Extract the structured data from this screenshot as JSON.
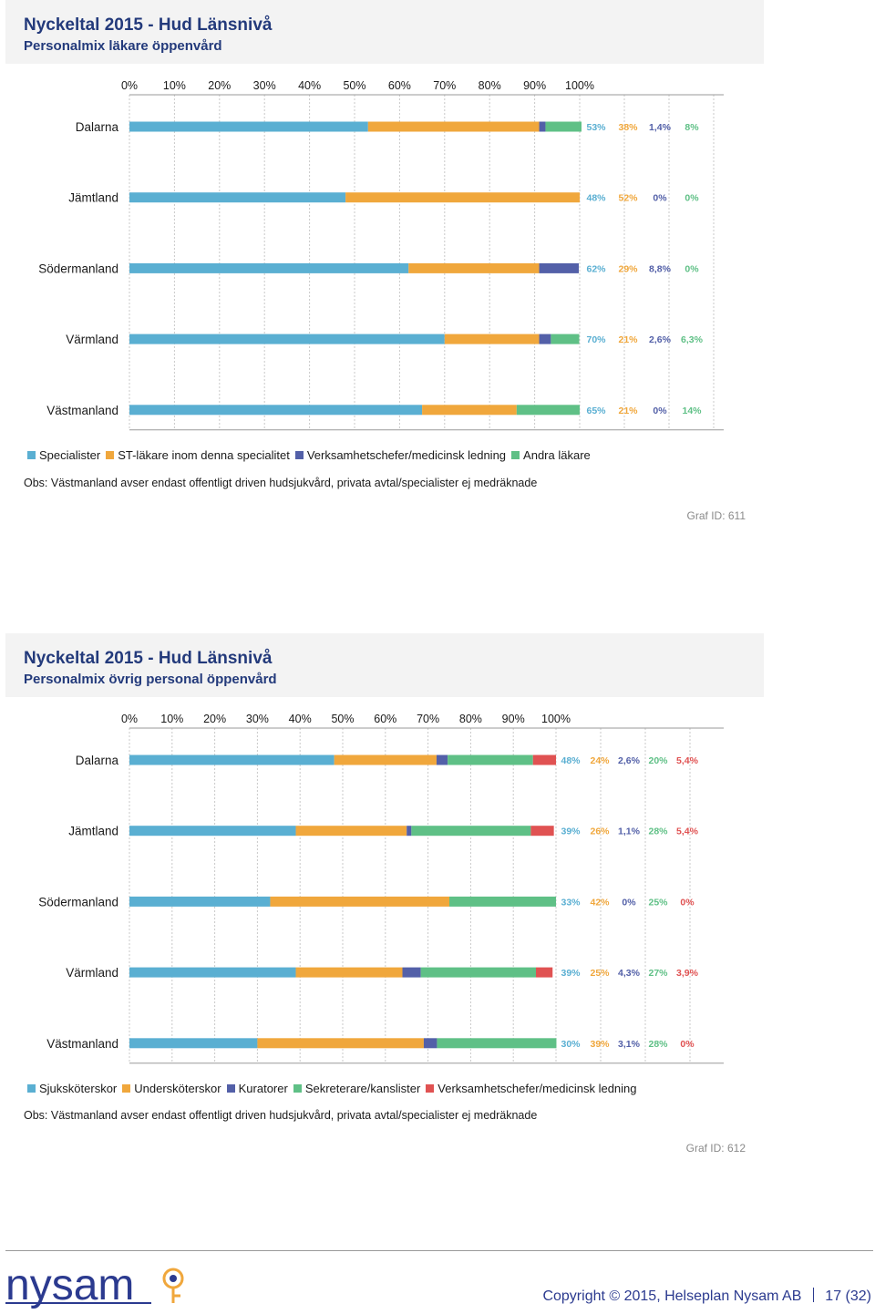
{
  "chart_data": [
    {
      "type": "bar",
      "orientation": "horizontal",
      "stacked": true,
      "title": "Nyckeltal 2015 - Hud Länsnivå",
      "subtitle": "Personalmix läkare öppenvård",
      "xlim": [
        0,
        100
      ],
      "x_ticks": [
        "0%",
        "10%",
        "20%",
        "30%",
        "40%",
        "50%",
        "60%",
        "70%",
        "80%",
        "90%",
        "100%"
      ],
      "grid": "vertical dotted",
      "legend_position": "bottom",
      "categories": [
        "Dalarna",
        "Jämtland",
        "Södermanland",
        "Värmland",
        "Västmanland"
      ],
      "series": [
        {
          "name": "Specialister",
          "color": "#5aafd2",
          "values": [
            53,
            48,
            62,
            70,
            65
          ],
          "labels": [
            "53%",
            "48%",
            "62%",
            "70%",
            "65%"
          ]
        },
        {
          "name": "ST-läkare inom denna specialitet",
          "color": "#f0a73c",
          "values": [
            38,
            52,
            29,
            21,
            21
          ],
          "labels": [
            "38%",
            "52%",
            "29%",
            "21%",
            "21%"
          ]
        },
        {
          "name": "Verksamhetschefer/medicinsk ledning",
          "color": "#5360a8",
          "values": [
            1.4,
            0,
            8.8,
            2.6,
            0
          ],
          "labels": [
            "1,4%",
            "0%",
            "8,8%",
            "2,6%",
            "0%"
          ]
        },
        {
          "name": "Andra läkare",
          "color": "#5fc086",
          "values": [
            8,
            0,
            0,
            6.3,
            14
          ],
          "labels": [
            "8%",
            "0%",
            "0%",
            "6,3%",
            "14%"
          ]
        }
      ],
      "note": "Obs: Västmanland avser endast offentligt driven hudsjukvård, privata avtal/specialister ej medräknade",
      "graf_id": "Graf ID: 611"
    },
    {
      "type": "bar",
      "orientation": "horizontal",
      "stacked": true,
      "title": "Nyckeltal 2015 - Hud Länsnivå",
      "subtitle": "Personalmix övrig personal öppenvård",
      "xlim": [
        0,
        100
      ],
      "x_ticks": [
        "0%",
        "10%",
        "20%",
        "30%",
        "40%",
        "50%",
        "60%",
        "70%",
        "80%",
        "90%",
        "100%"
      ],
      "grid": "vertical dotted",
      "legend_position": "bottom",
      "categories": [
        "Dalarna",
        "Jämtland",
        "Södermanland",
        "Värmland",
        "Västmanland"
      ],
      "series": [
        {
          "name": "Sjuksköterskor",
          "color": "#5aafd2",
          "values": [
            48,
            39,
            33,
            39,
            30
          ],
          "labels": [
            "48%",
            "39%",
            "33%",
            "39%",
            "30%"
          ]
        },
        {
          "name": "Undersköterskor",
          "color": "#f0a73c",
          "values": [
            24,
            26,
            42,
            25,
            39
          ],
          "labels": [
            "24%",
            "26%",
            "42%",
            "25%",
            "39%"
          ]
        },
        {
          "name": "Kuratorer",
          "color": "#5360a8",
          "values": [
            2.6,
            1.1,
            0,
            4.3,
            3.1
          ],
          "labels": [
            "2,6%",
            "1,1%",
            "0%",
            "4,3%",
            "3,1%"
          ]
        },
        {
          "name": "Sekreterare/kanslister",
          "color": "#5fc086",
          "values": [
            20,
            28,
            25,
            27,
            28
          ],
          "labels": [
            "20%",
            "28%",
            "25%",
            "27%",
            "28%"
          ]
        },
        {
          "name": "Verksamhetschefer/medicinsk ledning",
          "color": "#e05252",
          "values": [
            5.4,
            5.4,
            0,
            3.9,
            0
          ],
          "labels": [
            "5,4%",
            "5,4%",
            "0%",
            "3,9%",
            "0%"
          ]
        }
      ],
      "note": "Obs: Västmanland avser endast offentligt driven hudsjukvård, privata avtal/specialister ej medräknade",
      "graf_id": "Graf ID: 612"
    }
  ],
  "footer": {
    "logo_text": "nysam",
    "copyright": "Copyright © 2015, Helseplan Nysam AB",
    "page": "17 (32)",
    "brand_color": "#2b3a8f"
  }
}
